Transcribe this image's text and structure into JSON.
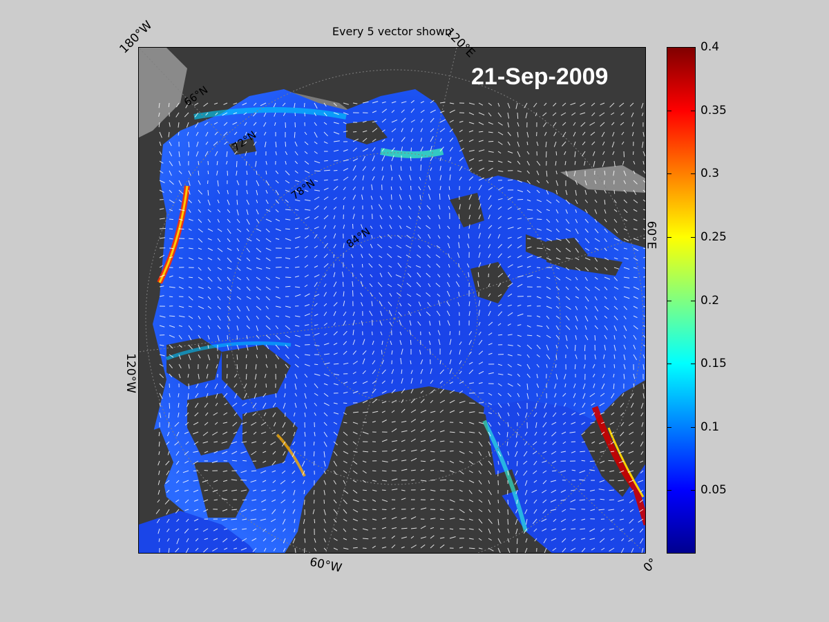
{
  "map": {
    "title": "Every 5 vector shown",
    "date": "21-Sep-2009",
    "edge_labels": [
      "180°W",
      "120°E",
      "60°E",
      "0°",
      "60°W",
      "120°W"
    ],
    "lat_labels": [
      "66°N",
      "72°N",
      "78°N",
      "84°N"
    ],
    "projection": "polar stereographic (Arctic)",
    "land_color": "#3a3a3a",
    "grid_color": "#808080"
  },
  "colorbar": {
    "min": 0,
    "max": 0.4,
    "ticks": [
      "0.4",
      "0.35",
      "0.3",
      "0.25",
      "0.2",
      "0.15",
      "0.1",
      "0.05"
    ],
    "tick_values": [
      0.4,
      0.35,
      0.3,
      0.25,
      0.2,
      0.15,
      0.1,
      0.05
    ],
    "colormap": "jet",
    "colormap_colors": [
      "#00008f",
      "#0000ff",
      "#0080ff",
      "#00ffff",
      "#80ff80",
      "#ffff00",
      "#ff8000",
      "#ff0000",
      "#800000"
    ]
  }
}
